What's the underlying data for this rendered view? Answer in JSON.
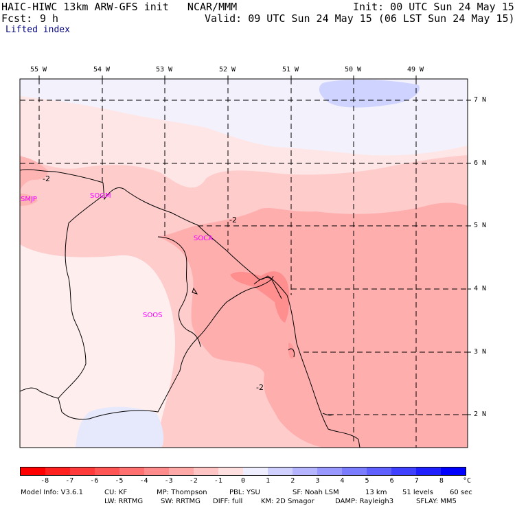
{
  "header": {
    "title_line": "HAIC-HIWC 13km ARW-GFS init   NCAR/MMM",
    "init": "Init: 00 UTC Sun 24 May 15",
    "fcst_label": "Fcst:",
    "fcst_value": "9 h",
    "valid": "Valid: 09 UTC Sun 24 May 15 (06 LST Sun 24 May 15)",
    "field": "Lifted index"
  },
  "map": {
    "lon_labels": [
      "55 W",
      "54 W",
      "53 W",
      "52 W",
      "51 W",
      "50 W",
      "49 W"
    ],
    "lat_labels": [
      "7 N",
      "6 N",
      "5 N",
      "4 N",
      "3 N",
      "2 N"
    ],
    "stations": [
      "SMJP",
      "SOGM",
      "SOCA",
      "SOOS"
    ],
    "contour_labels": [
      "-2",
      "-2",
      "-2"
    ]
  },
  "legend": {
    "unit": "°C",
    "ticks": [
      "-8",
      "-7",
      "-6",
      "-5",
      "-4",
      "-3",
      "-2",
      "-1",
      "0",
      "1",
      "2",
      "3",
      "4",
      "5",
      "6",
      "7",
      "8"
    ],
    "colors": [
      "#ff0000",
      "#ff2020",
      "#ff3a3a",
      "#ff5555",
      "#ff7070",
      "#ff8c8c",
      "#ffa8a8",
      "#ffc4c4",
      "#ffe0e0",
      "#eeeeff",
      "#d0d0ff",
      "#b4b4ff",
      "#9898ff",
      "#7c7cff",
      "#6060ff",
      "#4040ff",
      "#2020ff",
      "#0000ff"
    ]
  },
  "footer": {
    "line1": [
      "Model Info: V3.6.1",
      "CU: KF",
      "MP: Thompson",
      "PBL: YSU",
      "SF: Noah LSM",
      "13 km",
      "51 levels",
      "60 sec"
    ],
    "line2": [
      "LW: RRTMG",
      "SW: RRTMG",
      "DIFF: full",
      "KM: 2D Smagor",
      "DAMP: Rayleigh3",
      "SFLAY: MM5"
    ]
  }
}
